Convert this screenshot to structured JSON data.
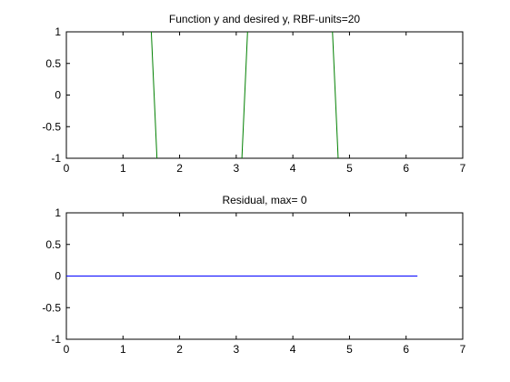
{
  "chart_data": [
    {
      "type": "line",
      "title": "Function y and desired y, RBF-units=20",
      "xlim": [
        0,
        7
      ],
      "ylim": [
        -1,
        1
      ],
      "xticks": [
        0,
        1,
        2,
        3,
        4,
        5,
        6,
        7
      ],
      "yticks": [
        -1,
        -0.5,
        0,
        0.5,
        1
      ],
      "xtick_labels": [
        "0",
        "1",
        "2",
        "3",
        "4",
        "5",
        "6",
        "7"
      ],
      "ytick_labels": [
        "-1",
        "-0.5",
        "0",
        "0.5",
        "1"
      ],
      "grid": false,
      "series": [
        {
          "color": "#008000",
          "segments": [
            {
              "x": [
                1.5,
                1.6
              ],
              "y": [
                1,
                -1
              ]
            },
            {
              "x": [
                3.1,
                3.2
              ],
              "y": [
                -1,
                1
              ]
            },
            {
              "x": [
                4.7,
                4.8
              ],
              "y": [
                1,
                -1
              ]
            }
          ]
        }
      ]
    },
    {
      "type": "line",
      "title": "Residual, max= 0",
      "xlim": [
        0,
        7
      ],
      "ylim": [
        -1,
        1
      ],
      "xticks": [
        0,
        1,
        2,
        3,
        4,
        5,
        6,
        7
      ],
      "yticks": [
        -1,
        -0.5,
        0,
        0.5,
        1
      ],
      "xtick_labels": [
        "0",
        "1",
        "2",
        "3",
        "4",
        "5",
        "6",
        "7"
      ],
      "ytick_labels": [
        "-1",
        "-0.5",
        "0",
        "0.5",
        "1"
      ],
      "grid": false,
      "series": [
        {
          "color": "#0000ff",
          "segments": [
            {
              "x": [
                0,
                6.2
              ],
              "y": [
                0,
                0
              ]
            }
          ]
        }
      ]
    }
  ]
}
